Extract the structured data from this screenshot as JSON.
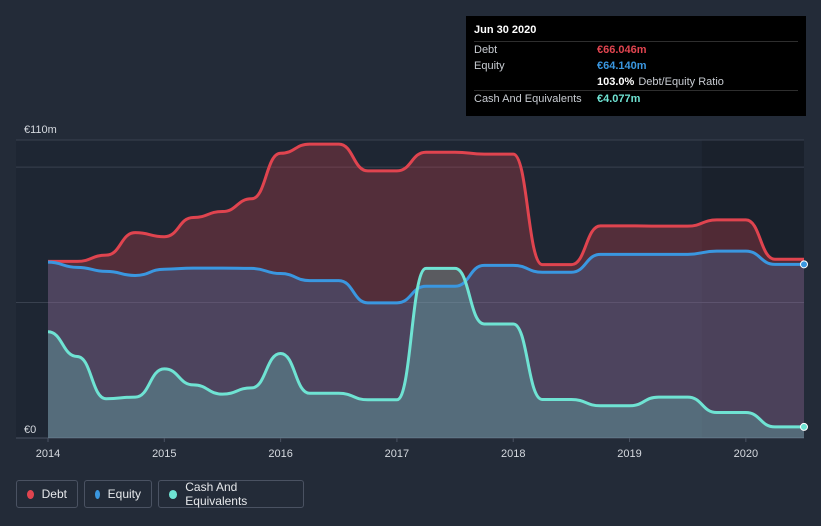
{
  "chart_data": {
    "type": "area",
    "ylim": [
      0,
      110
    ],
    "y_ticks": [
      {
        "value": 110,
        "label": "€110m"
      },
      {
        "value": 0,
        "label": "€0"
      }
    ],
    "x_ticks": [
      "2014",
      "2015",
      "2016",
      "2017",
      "2018",
      "2019",
      "2020"
    ],
    "xlim": [
      2014.0,
      2020.5
    ],
    "colors": {
      "debt": "#e0444f",
      "equity": "#3a97e0",
      "cash": "#6fe3d3"
    },
    "series": [
      {
        "name": "Debt",
        "key": "debt",
        "x": [
          2014.0,
          2014.25,
          2014.5,
          2014.75,
          2015.0,
          2015.25,
          2015.5,
          2015.75,
          2016.0,
          2016.25,
          2016.5,
          2016.75,
          2017.0,
          2017.25,
          2017.5,
          2017.75,
          2018.0,
          2018.25,
          2018.5,
          2018.75,
          2019.0,
          2019.25,
          2019.5,
          2019.75,
          2020.0,
          2020.25,
          2020.5
        ],
        "values": [
          65.2,
          65.2,
          67.5,
          75.8,
          74.3,
          81.4,
          83.6,
          88.3,
          105.1,
          108.5,
          108.5,
          98.6,
          98.6,
          105.5,
          105.5,
          104.8,
          104.8,
          64.0,
          64.0,
          78.3,
          78.3,
          78.2,
          78.2,
          80.5,
          80.5,
          66.0,
          66.0
        ]
      },
      {
        "name": "Equity",
        "key": "equity",
        "x": [
          2014.0,
          2014.25,
          2014.5,
          2014.75,
          2015.0,
          2015.25,
          2015.5,
          2015.75,
          2016.0,
          2016.25,
          2016.5,
          2016.75,
          2017.0,
          2017.25,
          2017.5,
          2017.75,
          2018.0,
          2018.25,
          2018.5,
          2018.75,
          2019.0,
          2019.25,
          2019.5,
          2019.75,
          2020.0,
          2020.25,
          2020.5
        ],
        "values": [
          64.9,
          63.0,
          61.5,
          60.0,
          62.3,
          62.7,
          62.7,
          62.6,
          60.7,
          58.1,
          58.1,
          49.9,
          49.9,
          56.0,
          56.0,
          63.7,
          63.7,
          61.2,
          61.2,
          67.8,
          67.8,
          67.8,
          67.8,
          69.0,
          69.0,
          64.1,
          64.1
        ]
      },
      {
        "name": "Cash And Equivalents",
        "key": "cash",
        "x": [
          2014.0,
          2014.25,
          2014.5,
          2014.75,
          2015.0,
          2015.25,
          2015.5,
          2015.75,
          2016.0,
          2016.25,
          2016.5,
          2016.75,
          2017.0,
          2017.25,
          2017.5,
          2017.75,
          2018.0,
          2018.25,
          2018.5,
          2018.75,
          2019.0,
          2019.25,
          2019.5,
          2019.75,
          2020.0,
          2020.25,
          2020.5
        ],
        "values": [
          39.2,
          30.1,
          14.5,
          15.1,
          25.5,
          19.6,
          16.2,
          18.5,
          31.2,
          16.5,
          16.5,
          14.1,
          14.1,
          62.6,
          62.6,
          42.1,
          42.1,
          14.2,
          14.2,
          11.9,
          11.9,
          15.1,
          15.1,
          9.4,
          9.4,
          4.1,
          4.1
        ]
      }
    ],
    "tooltip": {
      "date": "Jun 30 2020",
      "rows": [
        {
          "label": "Debt",
          "value": "€66.046m",
          "color": "#e0444f"
        },
        {
          "label": "Equity",
          "value": "€64.140m",
          "color": "#3a97e0"
        },
        {
          "label": "",
          "value": "103.0%",
          "suffix": "Debt/Equity Ratio",
          "color": "#ffffff"
        },
        {
          "label": "Cash And Equivalents",
          "value": "€4.077m",
          "color": "#6fe3d3"
        }
      ]
    },
    "legend": [
      {
        "label": "Debt",
        "color": "#e0444f"
      },
      {
        "label": "Equity",
        "color": "#3a97e0"
      },
      {
        "label": "Cash And Equivalents",
        "color": "#6fe3d3"
      }
    ]
  }
}
